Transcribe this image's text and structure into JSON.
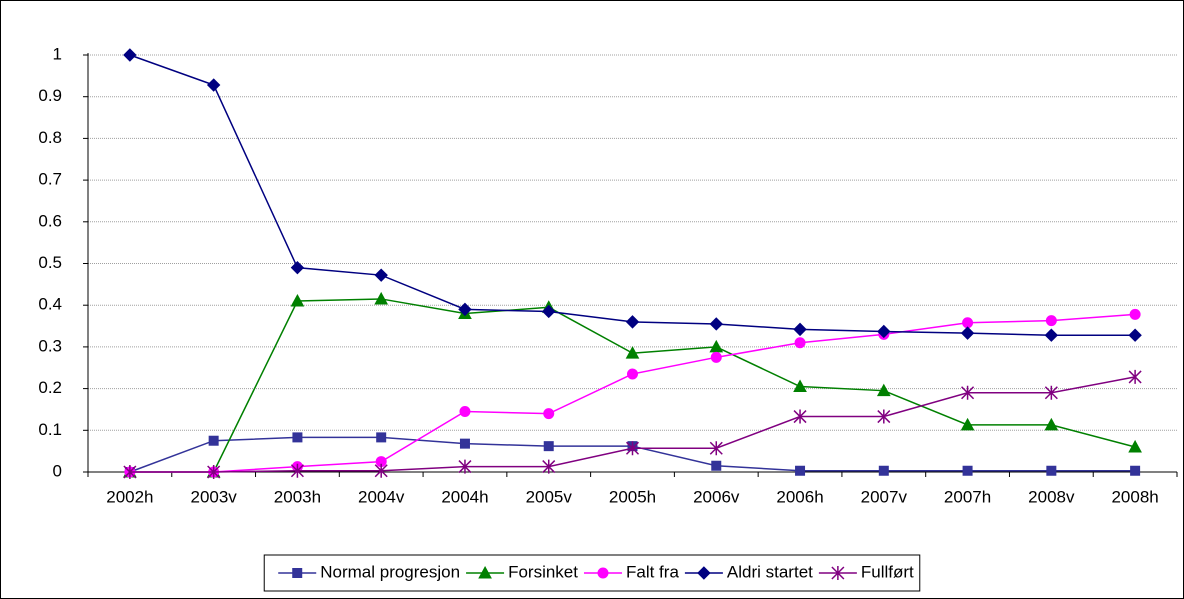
{
  "chart_data": {
    "type": "line",
    "categories": [
      "2002h",
      "2003v",
      "2003h",
      "2004v",
      "2004h",
      "2005v",
      "2005h",
      "2006v",
      "2006h",
      "2007v",
      "2007h",
      "2008v",
      "2008h"
    ],
    "series": [
      {
        "name": "Normal progresjon",
        "color": "#333399",
        "marker": "square",
        "values": [
          0,
          0.075,
          0.083,
          0.083,
          0.068,
          0.062,
          0.062,
          0.015,
          0.003,
          0.003,
          0.003,
          0.003,
          0.003
        ]
      },
      {
        "name": "Forsinket",
        "color": "#008000",
        "marker": "triangle",
        "values": [
          0,
          0,
          0.41,
          0.415,
          0.38,
          0.395,
          0.285,
          0.3,
          0.205,
          0.195,
          0.113,
          0.113,
          0.06
        ]
      },
      {
        "name": "Falt fra",
        "color": "#ff00ff",
        "marker": "circle",
        "values": [
          0,
          0,
          0.013,
          0.025,
          0.145,
          0.14,
          0.235,
          0.275,
          0.31,
          0.33,
          0.358,
          0.363,
          0.378
        ]
      },
      {
        "name": "Aldri startet",
        "color": "#000080",
        "marker": "diamond",
        "values": [
          1,
          0.928,
          0.49,
          0.472,
          0.39,
          0.385,
          0.36,
          0.355,
          0.342,
          0.337,
          0.333,
          0.328,
          0.328
        ]
      },
      {
        "name": "Fullført",
        "color": "#800080",
        "marker": "asterisk",
        "values": [
          0,
          0,
          0.003,
          0.003,
          0.013,
          0.013,
          0.057,
          0.057,
          0.133,
          0.133,
          0.19,
          0.19,
          0.228
        ]
      }
    ],
    "ylim": [
      0,
      1
    ],
    "yticks": [
      0,
      0.1,
      0.2,
      0.3,
      0.4,
      0.5,
      0.6,
      0.7,
      0.8,
      0.9,
      1
    ],
    "grid": true,
    "legend": "bottom"
  }
}
